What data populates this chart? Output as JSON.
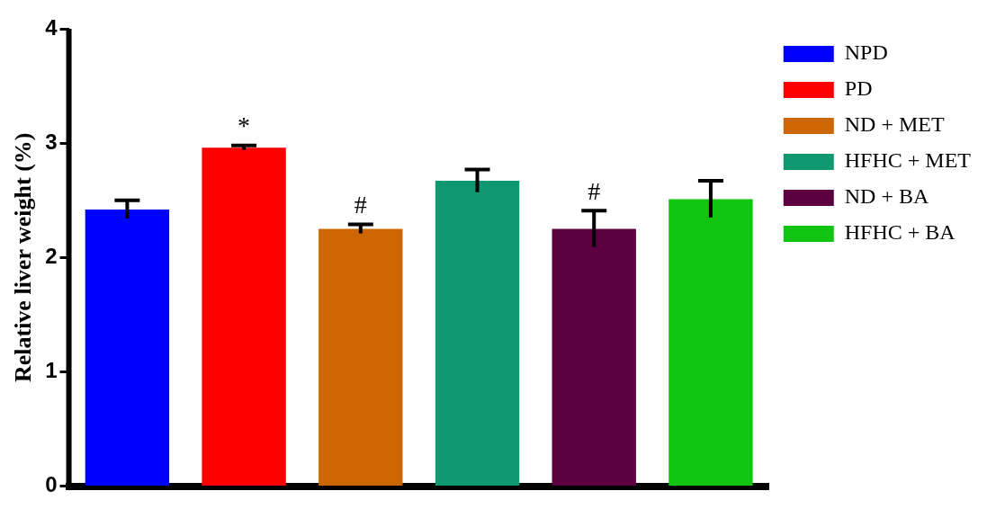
{
  "chart_data": {
    "type": "bar",
    "ylabel": "Relative liver weight (%)",
    "categories": [
      null,
      null,
      null,
      null,
      null,
      null
    ],
    "series": [
      {
        "name": "NPD",
        "color": "#0000ff",
        "values": [
          2.42,
          null,
          null,
          null,
          null,
          null
        ],
        "errors": [
          0.08,
          null,
          null,
          null,
          null,
          null
        ]
      },
      {
        "name": "PD",
        "color": "#ff0000",
        "values": [
          null,
          2.96,
          null,
          null,
          null,
          null
        ],
        "errors": [
          null,
          0.02,
          null,
          null,
          null,
          null
        ],
        "value_labels": [
          null,
          "*",
          null,
          null,
          null,
          null
        ]
      },
      {
        "name": "ND + MET",
        "color": "#cc6600",
        "values": [
          null,
          null,
          2.25,
          null,
          null,
          null
        ],
        "errors": [
          null,
          null,
          0.04,
          null,
          null,
          null
        ],
        "value_labels": [
          null,
          null,
          "#",
          null,
          null,
          null
        ]
      },
      {
        "name": "HFHC + MET",
        "color": "#109970",
        "values": [
          null,
          null,
          null,
          2.67,
          null,
          null
        ],
        "errors": [
          null,
          null,
          null,
          0.1,
          null,
          null
        ]
      },
      {
        "name": "ND + BA",
        "color": "#5c0040",
        "values": [
          null,
          null,
          null,
          null,
          2.25,
          null
        ],
        "errors": [
          null,
          null,
          null,
          null,
          0.16,
          null
        ],
        "value_labels": [
          null,
          null,
          null,
          null,
          "#",
          null
        ]
      },
      {
        "name": "HFHC + BA",
        "color": "#11c411",
        "values": [
          null,
          null,
          null,
          null,
          null,
          2.51
        ],
        "errors": [
          null,
          null,
          null,
          null,
          null,
          0.16
        ]
      }
    ],
    "ylim": [
      0,
      4
    ],
    "yticks": [
      0,
      1,
      2,
      3,
      4
    ],
    "grid": false,
    "legend": "top right"
  }
}
